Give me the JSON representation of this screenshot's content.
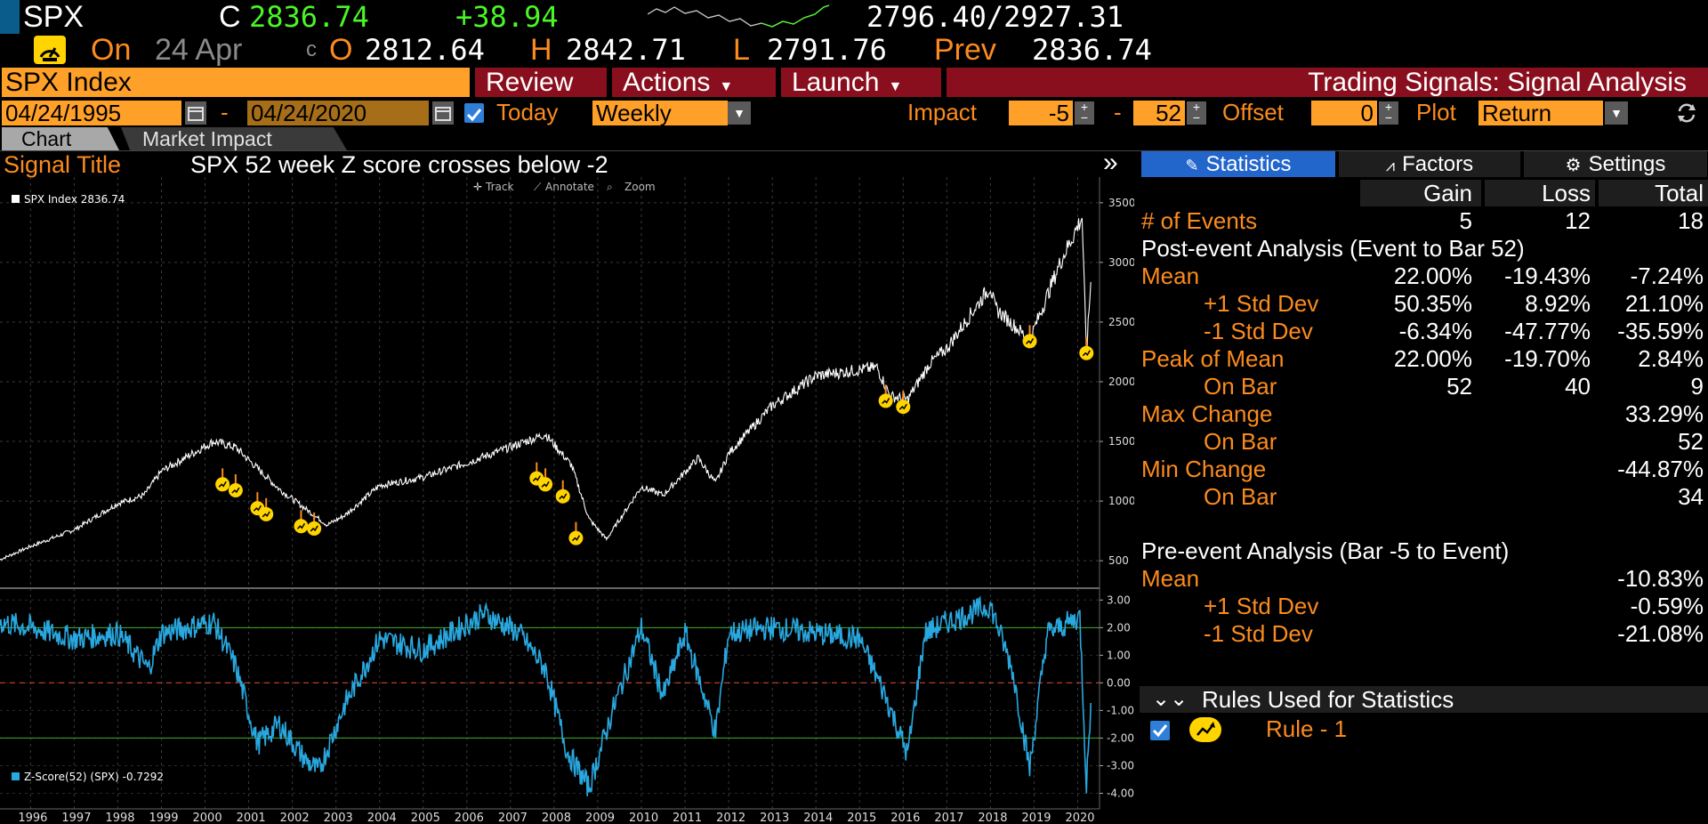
{
  "quote": {
    "ticker": "SPX",
    "close_label": "C",
    "close": "2836.74",
    "change": "+38.94",
    "range": "2796.40/2927.31",
    "on_label": "On",
    "date": "24 Apr",
    "c_marker": "c",
    "open_label": "O",
    "open": "2812.64",
    "high_label": "H",
    "high": "2842.71",
    "low_label": "L",
    "low": "2791.76",
    "prev_label": "Prev",
    "prev": "2836.74"
  },
  "cmdbar": {
    "security": "SPX Index",
    "review": "Review",
    "actions": "Actions",
    "launch": "Launch",
    "title": "Trading Signals: Signal Analysis"
  },
  "options": {
    "start_date": "04/24/1995",
    "dash": "-",
    "end_date": "04/24/2020",
    "today_label": "Today",
    "frequency": "Weekly",
    "impact_label": "Impact",
    "impact_from": "-5",
    "impact_to": "52",
    "offset_label": "Offset",
    "offset": "0",
    "plot_label": "Plot",
    "plot": "Return"
  },
  "tabs": [
    "Chart",
    "Market Impact"
  ],
  "signal": {
    "label": "Signal Title",
    "title": "SPX 52 week Z score crosses below -2"
  },
  "chart": {
    "toolbar": [
      "Track",
      "Annotate",
      "Zoom"
    ],
    "legend_top": "SPX Index 2836.74",
    "legend_bottom": "Z-Score(52) (SPX) -0.7292",
    "top_ticks": [
      "3500",
      "3000",
      "2500",
      "2000",
      "1500",
      "1000",
      "500"
    ],
    "bottom_ticks": [
      "3.00",
      "2.00",
      "1.00",
      "0.00",
      "-1.00",
      "-2.00",
      "-3.00",
      "-4.00"
    ],
    "years": [
      "1996",
      "1997",
      "1998",
      "1999",
      "2000",
      "2001",
      "2002",
      "2003",
      "2004",
      "2005",
      "2006",
      "2007",
      "2008",
      "2009",
      "2010",
      "2011",
      "2012",
      "2013",
      "2014",
      "2015",
      "2016",
      "2017",
      "2018",
      "2019",
      "2020"
    ],
    "colors": {
      "price": "#ffffff",
      "zscore": "#29a8e0",
      "threshold": "#3fae2a",
      "zero": "#c0392b",
      "marker": "#ffd400"
    }
  },
  "chart_data": [
    {
      "type": "line",
      "series": [
        {
          "name": "SPX Index",
          "x": [
            1995.3,
            1996,
            1997,
            1998,
            1998.6,
            1999,
            2000.2,
            2000.7,
            2001.7,
            2002.8,
            2003.2,
            2004,
            2005,
            2006,
            2007.8,
            2008.4,
            2008.8,
            2009.2,
            2010,
            2010.5,
            2011.3,
            2011.7,
            2012,
            2013,
            2014,
            2015.4,
            2015.7,
            2016.1,
            2016.6,
            2017,
            2018,
            2018.1,
            2018.9,
            2019.6,
            2020.1,
            2020.2,
            2020.3
          ],
          "values": [
            510,
            620,
            760,
            980,
            1050,
            1250,
            1500,
            1450,
            1100,
            800,
            880,
            1130,
            1200,
            1320,
            1560,
            1300,
            850,
            680,
            1120,
            1050,
            1360,
            1150,
            1400,
            1800,
            2050,
            2120,
            1880,
            1850,
            2150,
            2280,
            2800,
            2620,
            2350,
            3000,
            3380,
            2230,
            2836
          ]
        }
      ],
      "ylim": [
        300,
        3700
      ],
      "events_value": [
        1200,
        1150,
        1000,
        950,
        850,
        830,
        1250,
        1200,
        1100,
        750,
        1900,
        1850,
        2400,
        2300
      ],
      "events_x": [
        2000.4,
        2000.7,
        2001.2,
        2001.4,
        2002.2,
        2002.5,
        2007.6,
        2007.8,
        2008.2,
        2008.5,
        2015.6,
        2016.0,
        2018.9,
        2020.2
      ]
    },
    {
      "type": "line",
      "series": [
        {
          "name": "Z-Score(52) (SPX)",
          "x": [
            1995.3,
            1996,
            1997,
            1998,
            1998.7,
            1999,
            2000.2,
            2000.7,
            2001.2,
            2001.7,
            2002.3,
            2002.6,
            2003.2,
            2004,
            2005,
            2006.4,
            2007.2,
            2007.8,
            2008.3,
            2008.8,
            2009.3,
            2010,
            2010.5,
            2011,
            2011.7,
            2012,
            2013,
            2014,
            2015,
            2015.6,
            2016.1,
            2016.5,
            2017,
            2018,
            2018.5,
            2018.9,
            2019.3,
            2019.7,
            2020.05,
            2020.2,
            2020.3
          ],
          "values": [
            2.2,
            2.0,
            1.6,
            1.8,
            0.5,
            1.8,
            2.2,
            0.6,
            -2.2,
            -1.5,
            -2.8,
            -3.2,
            -0.8,
            1.6,
            1.2,
            2.5,
            1.8,
            0.5,
            -2.5,
            -3.8,
            -1.2,
            2.0,
            -0.5,
            1.8,
            -1.8,
            1.8,
            2.0,
            1.8,
            1.6,
            -0.5,
            -2.6,
            1.8,
            2.2,
            2.8,
            0.5,
            -3.1,
            1.8,
            2.1,
            2.4,
            -3.7,
            -0.73
          ]
        }
      ],
      "ylim": [
        -4.5,
        3.3
      ]
    }
  ],
  "panel": {
    "tabs": [
      "Statistics",
      "Factors",
      "Settings"
    ],
    "headers": [
      "Gain",
      "Loss",
      "Total"
    ],
    "events": {
      "label": "# of Events",
      "gain": "5",
      "loss": "12",
      "total": "18"
    },
    "post_title": "Post-event Analysis (Event to Bar 52)",
    "post_rows": [
      {
        "label": "Mean",
        "gain": "22.00%",
        "loss": "-19.43%",
        "total": "-7.24%",
        "indent": false
      },
      {
        "label": "+1 Std Dev",
        "gain": "50.35%",
        "loss": "8.92%",
        "total": "21.10%",
        "indent": true
      },
      {
        "label": "-1 Std Dev",
        "gain": "-6.34%",
        "loss": "-47.77%",
        "total": "-35.59%",
        "indent": true
      },
      {
        "label": "Peak of Mean",
        "gain": "22.00%",
        "loss": "-19.70%",
        "total": "2.84%",
        "indent": false
      },
      {
        "label": "On Bar",
        "gain": "52",
        "loss": "40",
        "total": "9",
        "indent": true
      },
      {
        "label": "Max Change",
        "gain": "",
        "loss": "",
        "total": "33.29%",
        "indent": false
      },
      {
        "label": "On Bar",
        "gain": "",
        "loss": "",
        "total": "52",
        "indent": true
      },
      {
        "label": "Min Change",
        "gain": "",
        "loss": "",
        "total": "-44.87%",
        "indent": false
      },
      {
        "label": "On Bar",
        "gain": "",
        "loss": "",
        "total": "34",
        "indent": true
      }
    ],
    "pre_title": "Pre-event Analysis (Bar -5 to Event)",
    "pre_rows": [
      {
        "label": "Mean",
        "total": "-10.83%",
        "indent": false
      },
      {
        "label": "+1 Std Dev",
        "total": "-0.59%",
        "indent": true
      },
      {
        "label": "-1 Std Dev",
        "total": "-21.08%",
        "indent": true
      }
    ],
    "rules_title": "Rules Used for Statistics",
    "rule_label": "Rule - 1"
  }
}
